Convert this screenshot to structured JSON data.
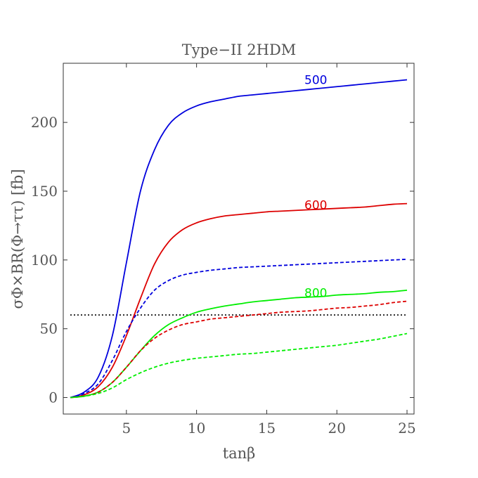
{
  "chart_data": {
    "type": "line",
    "title": "Type−II 2HDM",
    "xlabel": "tanβ",
    "ylabel": "σΦ×BR(Φ→ττ) [fb]",
    "xlim": [
      0.5,
      25.5
    ],
    "ylim": [
      -12,
      243
    ],
    "xticks": [
      5,
      10,
      15,
      20,
      25
    ],
    "yticks": [
      0,
      50,
      100,
      150,
      200
    ],
    "colors": {
      "blue": "#0000dd",
      "red": "#dd0000",
      "green": "#00ee00",
      "reference": "#000000"
    },
    "series": [
      {
        "name": "500",
        "color": "blue",
        "style": "solid",
        "x": [
          1,
          2,
          3,
          4,
          5,
          6,
          7,
          8,
          9,
          10,
          11,
          12,
          13,
          14,
          15,
          16,
          17,
          18,
          19,
          20,
          21,
          22,
          23,
          24,
          25
        ],
        "values": [
          0,
          4,
          15,
          45,
          98,
          150,
          180,
          198,
          207,
          212,
          215,
          217,
          219,
          220,
          221,
          222,
          223,
          224,
          225,
          226,
          227,
          228,
          229,
          230,
          231
        ]
      },
      {
        "name": "600",
        "color": "red",
        "style": "solid",
        "x": [
          1,
          2,
          3,
          4,
          5,
          6,
          7,
          8,
          9,
          10,
          11,
          12,
          13,
          14,
          15,
          16,
          17,
          18,
          19,
          20,
          21,
          22,
          23,
          24,
          25
        ],
        "values": [
          0,
          2,
          8,
          22,
          45,
          72,
          97,
          113,
          122,
          127,
          130,
          132,
          133,
          134,
          135,
          135.5,
          136,
          136.5,
          137,
          137.5,
          138,
          138.5,
          139.5,
          140.5,
          141
        ]
      },
      {
        "name": "800",
        "color": "green",
        "style": "solid",
        "x": [
          1,
          2,
          3,
          4,
          5,
          6,
          7,
          8,
          9,
          10,
          11,
          12,
          13,
          14,
          15,
          16,
          17,
          18,
          19,
          20,
          21,
          22,
          23,
          24,
          25
        ],
        "values": [
          0,
          1,
          4,
          11,
          22,
          34,
          45,
          53,
          58,
          62,
          64.5,
          66.5,
          68,
          69.5,
          70.5,
          71.5,
          72.5,
          73,
          73.5,
          74.5,
          75,
          75.5,
          76.5,
          77,
          78
        ]
      },
      {
        "name": "500 dashed",
        "color": "blue",
        "style": "dashed",
        "x": [
          1,
          2,
          3,
          4,
          5,
          6,
          7,
          8,
          9,
          10,
          11,
          12,
          13,
          14,
          15,
          16,
          17,
          18,
          19,
          20,
          21,
          22,
          23,
          24,
          25
        ],
        "values": [
          0,
          3,
          10,
          27,
          48,
          65,
          78,
          85,
          89,
          91,
          92.5,
          93.5,
          94.5,
          95,
          95.5,
          96,
          96.5,
          97,
          97.5,
          98,
          98.5,
          99,
          99.5,
          100,
          100.5
        ]
      },
      {
        "name": "600 dashed",
        "color": "red",
        "style": "dashed",
        "x": [
          1,
          2,
          3,
          4,
          5,
          6,
          7,
          8,
          9,
          10,
          11,
          12,
          13,
          14,
          15,
          16,
          17,
          18,
          19,
          20,
          21,
          22,
          23,
          24,
          25
        ],
        "values": [
          0,
          1,
          4,
          11,
          22,
          34,
          43,
          49,
          53,
          55,
          57,
          58,
          59,
          60,
          61,
          62,
          62.5,
          63,
          64,
          65,
          65.5,
          66.5,
          67.5,
          69,
          70
        ]
      },
      {
        "name": "800 dashed",
        "color": "green",
        "style": "dashed",
        "x": [
          1,
          2,
          3,
          4,
          5,
          6,
          7,
          8,
          9,
          10,
          11,
          12,
          13,
          14,
          15,
          16,
          17,
          18,
          19,
          20,
          21,
          22,
          23,
          24,
          25
        ],
        "values": [
          0,
          1,
          3,
          7,
          13,
          18,
          22,
          25,
          27,
          28.5,
          29.5,
          30.5,
          31.5,
          32,
          33,
          34,
          35,
          36,
          37,
          38,
          39.5,
          41,
          42.5,
          44.5,
          46.5
        ]
      }
    ],
    "reference_line": {
      "y": 60,
      "style": "dotted",
      "color": "reference"
    },
    "annotations": [
      {
        "text": "500",
        "x": 18.5,
        "y": 228,
        "color": "blue"
      },
      {
        "text": "600",
        "x": 18.5,
        "y": 137,
        "color": "red"
      },
      {
        "text": "800",
        "x": 18.5,
        "y": 73,
        "color": "green"
      }
    ]
  }
}
